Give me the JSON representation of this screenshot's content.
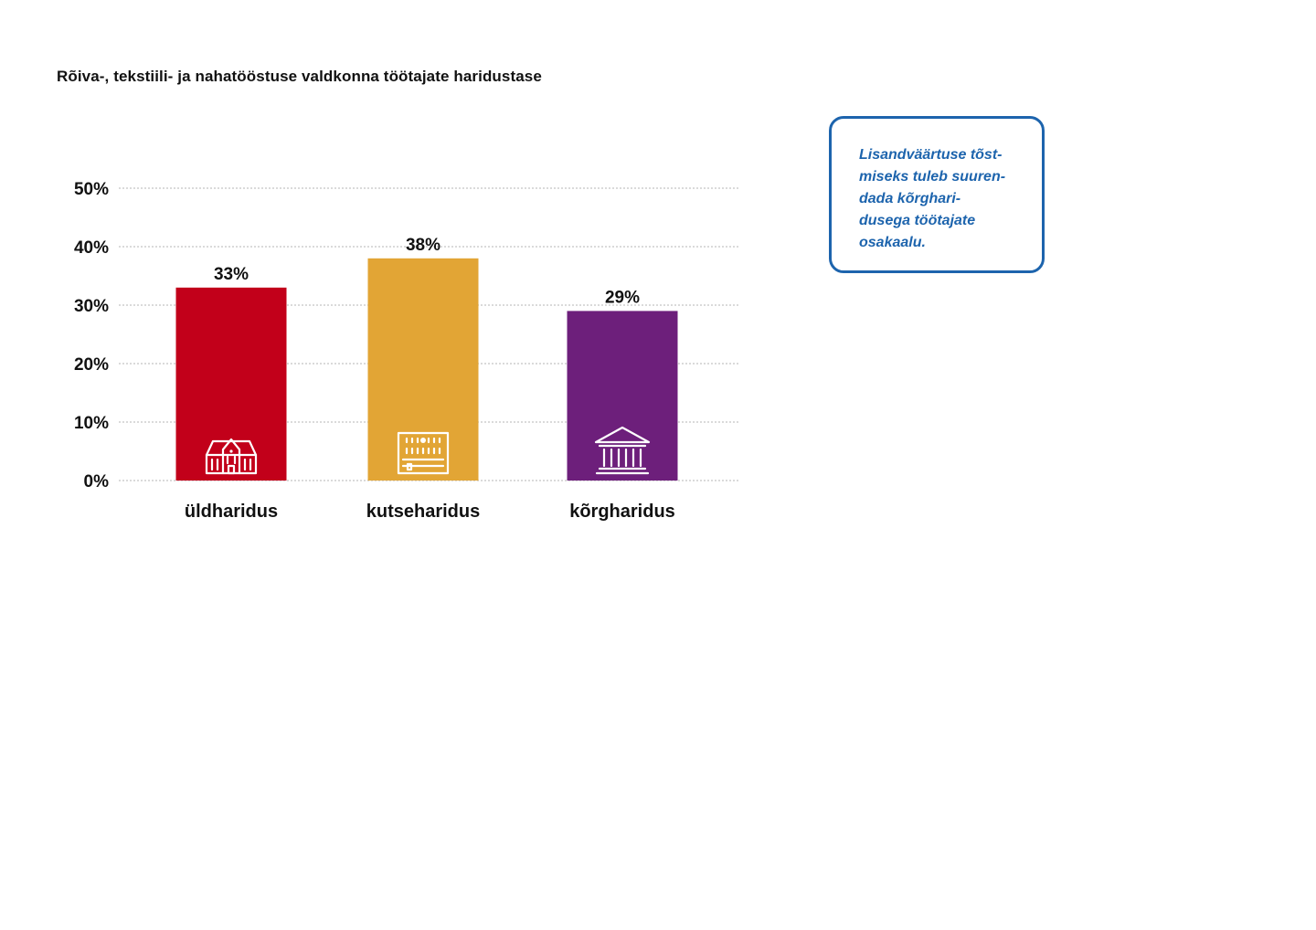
{
  "chart_data": {
    "type": "bar",
    "title": "Rõiva-, tekstiili- ja nahatööstuse valdkonna töötajate haridustase",
    "categories": [
      "üldharidus",
      "kutseharidus",
      "kõrgharidus"
    ],
    "values": [
      33,
      38,
      29
    ],
    "value_labels": [
      "33%",
      "38%",
      "29%"
    ],
    "bar_colors": [
      "#c2001a",
      "#e2a535",
      "#6d1f7b"
    ],
    "category_icons": [
      "school-building-icon",
      "vocational-school-icon",
      "university-icon"
    ],
    "ylim": [
      0,
      50
    ],
    "yticks": [
      0,
      10,
      20,
      30,
      40,
      50
    ],
    "ytick_labels": [
      "0%",
      "10%",
      "20%",
      "30%",
      "40%",
      "50%"
    ],
    "xlabel": "",
    "ylabel": "",
    "grid": true,
    "legend": "none"
  },
  "callout": {
    "lines": [
      "Lisandväärtuse tõst-",
      "miseks tuleb suuren-",
      "dada kõrghari-",
      "dusega töötajate",
      "osakaalu."
    ],
    "color": "#1d64ad"
  }
}
